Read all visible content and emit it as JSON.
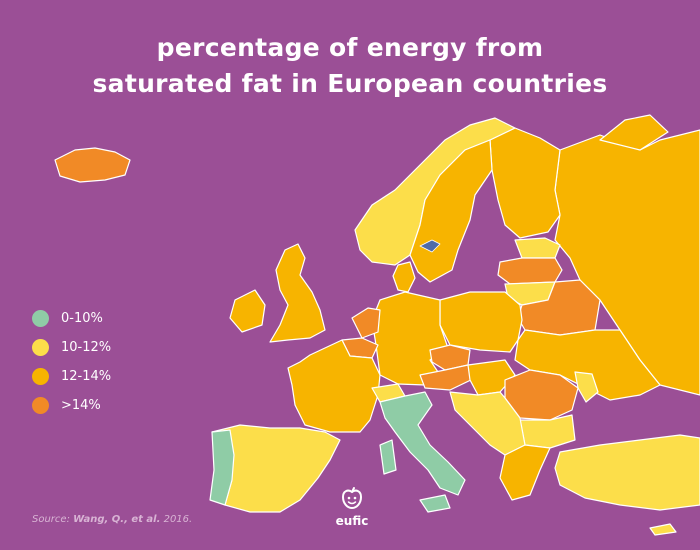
{
  "title": {
    "line1": "percentage of energy from",
    "line2": "saturated fat in European countries"
  },
  "legend": [
    {
      "label": "0-10%",
      "color": "#8fcca6"
    },
    {
      "label": "10-12%",
      "color": "#fcde4a"
    },
    {
      "label": "12-14%",
      "color": "#f7b400"
    },
    {
      "label": ">14%",
      "color": "#f18a26"
    }
  ],
  "source": {
    "prefix": "Source:",
    "authors": "Wang, Q., et al.",
    "year": "2016."
  },
  "logo": {
    "text": "eufic"
  },
  "colors": {
    "background": "#9b4f96",
    "border": "#ffffff",
    "highlight": "#4f6aa8"
  },
  "regions": [
    {
      "name": "Iceland",
      "category": ">14%"
    },
    {
      "name": "Norway",
      "category": "10-12%"
    },
    {
      "name": "Sweden",
      "category": "12-14%"
    },
    {
      "name": "Finland",
      "category": "12-14%"
    },
    {
      "name": "Russia",
      "category": "12-14%"
    },
    {
      "name": "Estonia",
      "category": "10-12%"
    },
    {
      "name": "Latvia",
      "category": ">14%"
    },
    {
      "name": "Lithuania",
      "category": "10-12%"
    },
    {
      "name": "Belarus",
      "category": ">14%"
    },
    {
      "name": "Ukraine",
      "category": "12-14%"
    },
    {
      "name": "Poland",
      "category": "12-14%"
    },
    {
      "name": "Germany",
      "category": "12-14%"
    },
    {
      "name": "Denmark",
      "category": "12-14%"
    },
    {
      "name": "Netherlands",
      "category": ">14%"
    },
    {
      "name": "Belgium",
      "category": ">14%"
    },
    {
      "name": "France",
      "category": "12-14%"
    },
    {
      "name": "United Kingdom",
      "category": "12-14%"
    },
    {
      "name": "Ireland",
      "category": "12-14%"
    },
    {
      "name": "Spain",
      "category": "10-12%"
    },
    {
      "name": "Portugal",
      "category": "0-10%"
    },
    {
      "name": "Switzerland",
      "category": "10-12%"
    },
    {
      "name": "Italy",
      "category": "0-10%"
    },
    {
      "name": "Czech Republic",
      "category": ">14%"
    },
    {
      "name": "Austria",
      "category": ">14%"
    },
    {
      "name": "Hungary",
      "category": "12-14%"
    },
    {
      "name": "Romania",
      "category": ">14%"
    },
    {
      "name": "Bulgaria",
      "category": "10-12%"
    },
    {
      "name": "Greece",
      "category": "12-14%"
    },
    {
      "name": "Turkey",
      "category": "10-12%"
    },
    {
      "name": "Moldova",
      "category": "10-12%"
    }
  ]
}
